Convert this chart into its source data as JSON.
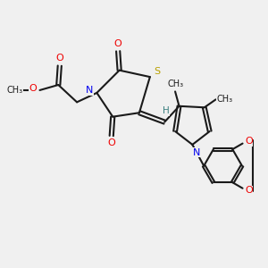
{
  "bg_color": "#f0f0f0",
  "bond_color": "#1a1a1a",
  "S_color": "#b8a000",
  "N_color": "#0000ee",
  "O_color": "#ee0000",
  "H_color": "#3a8080",
  "lw": 1.5,
  "fs": 7.5,
  "xlim": [
    0,
    10
  ],
  "ylim": [
    0,
    10
  ]
}
